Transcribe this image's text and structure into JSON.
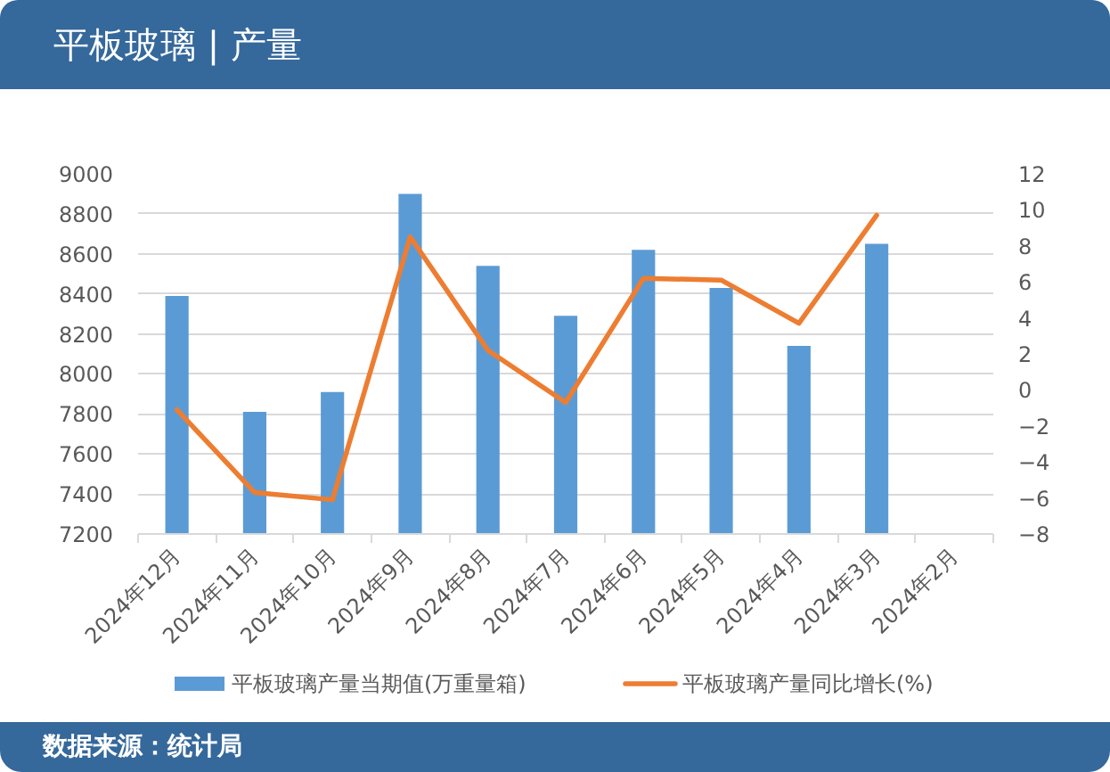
{
  "chart_data": {
    "type": "bar",
    "title": "平板玻璃 | 产量",
    "categories": [
      "2024年12月",
      "2024年11月",
      "2024年10月",
      "2024年9月",
      "2024年8月",
      "2024年7月",
      "2024年6月",
      "2024年5月",
      "2024年4月",
      "2024年3月",
      "2024年2月"
    ],
    "series": [
      {
        "name": "平板玻璃产量当期值(万重量箱)",
        "color": "#5b9bd5",
        "values": [
          8390,
          7810,
          7910,
          8900,
          8540,
          8290,
          8620,
          8430,
          8140,
          8650,
          null
        ]
      },
      {
        "name": "平板玻璃产量同比增长(%)",
        "type": "line",
        "axis": "y2",
        "color": "#ed7d31",
        "values": [
          -1.1,
          -5.7,
          -6.1,
          8.5,
          2.2,
          -0.7,
          6.2,
          6.1,
          3.7,
          9.7,
          null
        ]
      }
    ],
    "ylim": [
      7200,
      9000
    ],
    "yticks": [
      7200,
      7400,
      7600,
      7800,
      8000,
      8200,
      8400,
      8600,
      8800,
      9000
    ],
    "y2lim": [
      -8,
      12
    ],
    "y2ticks": [
      -8,
      -6,
      -4,
      -2,
      0,
      2,
      4,
      6,
      8,
      10,
      12
    ],
    "grid": "y",
    "legend": "bottom",
    "annotations": [
      "数据来源：统计局"
    ]
  }
}
